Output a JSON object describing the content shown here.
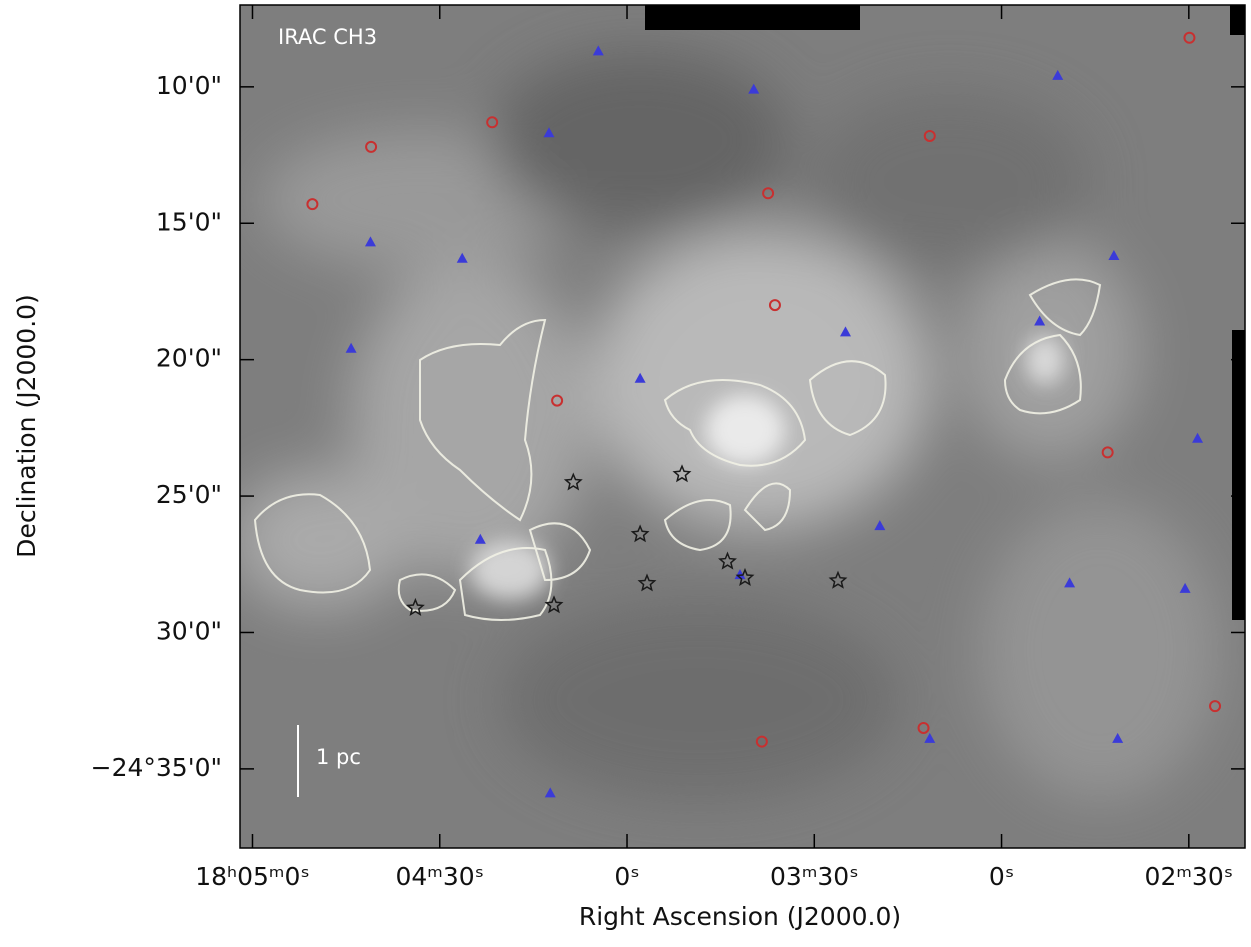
{
  "chart_data": {
    "type": "scatter",
    "annotations": [
      "IRAC CH3",
      "1 pc"
    ],
    "x_label": "Right Ascension (J2000.0)",
    "y_label": "Declination (J2000.0)",
    "xlim": [
      302,
      141
    ],
    "ylim": [
      -37.9,
      -7
    ],
    "xticks": [
      {
        "value": 300,
        "label": "18ʰ05ᵐ0ˢ"
      },
      {
        "value": 270,
        "label": "04ᵐ30ˢ"
      },
      {
        "value": 240,
        "label": "0ˢ"
      },
      {
        "value": 210,
        "label": "03ᵐ30ˢ"
      },
      {
        "value": 180,
        "label": "0ˢ"
      },
      {
        "value": 150,
        "label": "02ᵐ30ˢ"
      }
    ],
    "yticks": [
      {
        "value": -10,
        "label": "10'0\""
      },
      {
        "value": -15,
        "label": "15'0\""
      },
      {
        "value": -20,
        "label": "20'0\""
      },
      {
        "value": -25,
        "label": "25'0\""
      },
      {
        "value": -30,
        "label": "30'0\""
      },
      {
        "value": -35,
        "label": "−24°35'0\""
      }
    ],
    "series": [
      {
        "marker": "triangle",
        "color": "#3b3bd8",
        "x": [
          244.6,
          252.5,
          281.1,
          284.2,
          237.9,
          205,
          171,
          162,
          148.6,
          150.6,
          191.5,
          161.4,
          252.3,
          263.5,
          221.9,
          169.1,
          219.7,
          266.4,
          199.5,
          173.9
        ],
        "values": [
          -8.7,
          -11.7,
          -15.7,
          -19.6,
          -20.7,
          -19.0,
          -9.6,
          -16.2,
          -22.9,
          -28.4,
          -33.9,
          -33.9,
          -35.9,
          -26.6,
          -27.9,
          -28.2,
          -10.1,
          -16.3,
          -26.1,
          -18.6
        ]
      },
      {
        "marker": "circle",
        "color": "#c83030",
        "x": [
          290.4,
          281,
          217.4,
          191.5,
          149.9,
          218.4,
          192.5,
          145.8,
          163,
          251.2,
          261.6,
          216.3
        ],
        "values": [
          -14.3,
          -12.2,
          -13.9,
          -11.8,
          -8.2,
          -34.0,
          -33.5,
          -32.7,
          -23.4,
          -21.5,
          -11.3,
          -18
        ]
      },
      {
        "marker": "star",
        "color": "#1a1a1a",
        "x": [
          248.6,
          237.9,
          236.8,
          206.2,
          231.2,
          251.7,
          273.9,
          221.1,
          223.9
        ],
        "values": [
          -24.5,
          -26.4,
          -28.2,
          -28.1,
          -24.2,
          -29.0,
          -29.1,
          -28.0,
          -27.4
        ]
      }
    ]
  }
}
